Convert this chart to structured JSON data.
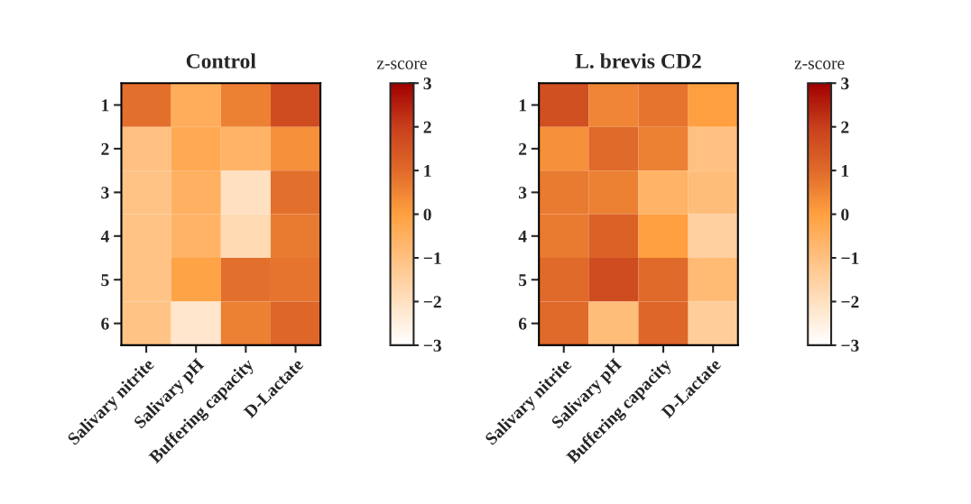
{
  "chart_data": [
    {
      "type": "heatmap",
      "title": "Control",
      "clabel": "z-score",
      "categories": [
        "Salivary nitrite",
        "Salivary pH",
        "Buffering capacity",
        "D-Lactate"
      ],
      "y_categories": [
        "1",
        "2",
        "3",
        "4",
        "5",
        "6"
      ],
      "cells": [
        [
          0.9,
          -0.4,
          0.6,
          1.7
        ],
        [
          -1.0,
          -0.3,
          -0.6,
          0.3
        ],
        [
          -1.1,
          -0.5,
          -2.0,
          0.9
        ],
        [
          -1.1,
          -0.6,
          -1.8,
          0.7
        ],
        [
          -1.1,
          -0.1,
          0.9,
          0.8
        ],
        [
          -1.1,
          -2.2,
          0.6,
          1.1
        ]
      ],
      "clim": [
        -3,
        3
      ],
      "cticks": [
        {
          "value": -3,
          "label": "−3"
        },
        {
          "value": -2,
          "label": "−2"
        },
        {
          "value": -1,
          "label": "−1"
        },
        0,
        1,
        2,
        3
      ]
    },
    {
      "type": "heatmap",
      "title": "L. brevis CD2",
      "clabel": "z-score",
      "categories": [
        "Salivary nitrite",
        "Salivary pH",
        "Buffering capacity",
        "D-Lactate"
      ],
      "y_categories": [
        "1",
        "2",
        "3",
        "4",
        "5",
        "6"
      ],
      "cells": [
        [
          1.6,
          0.5,
          0.8,
          0.0
        ],
        [
          0.3,
          1.0,
          0.6,
          -1.0
        ],
        [
          0.7,
          0.6,
          -0.6,
          -0.9
        ],
        [
          0.7,
          1.2,
          0.0,
          -1.5
        ],
        [
          1.0,
          1.7,
          1.0,
          -0.8
        ],
        [
          1.0,
          -0.9,
          1.1,
          -1.4
        ]
      ],
      "clim": [
        -3,
        3
      ],
      "cticks": [
        {
          "value": -3,
          "label": "−3"
        },
        {
          "value": -2,
          "label": "−2"
        },
        {
          "value": -1,
          "label": "−1"
        },
        0,
        1,
        2,
        3
      ]
    }
  ]
}
